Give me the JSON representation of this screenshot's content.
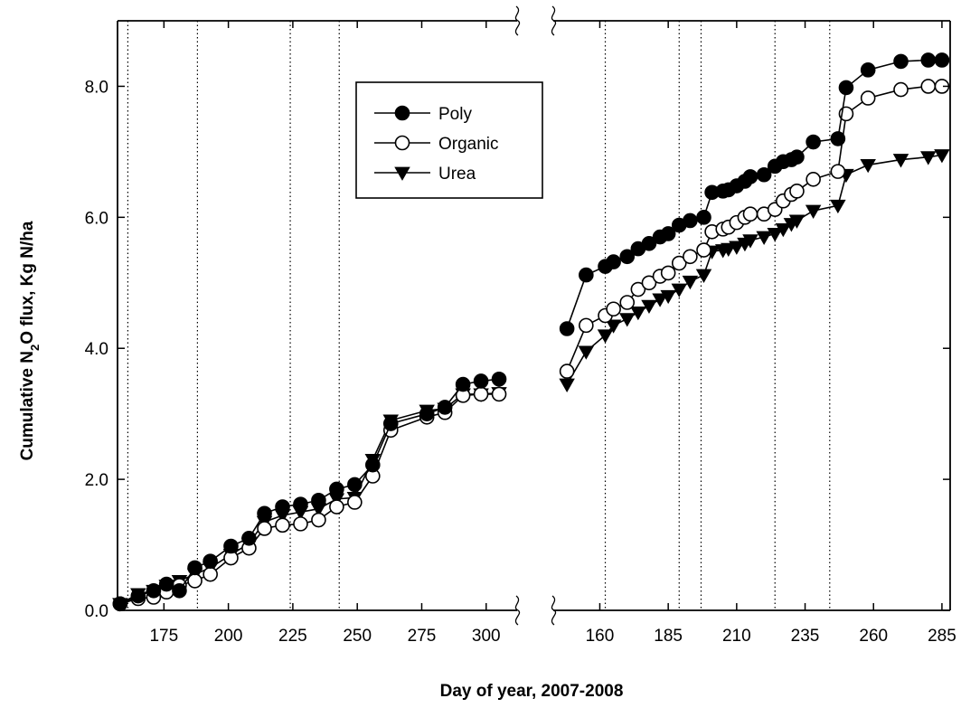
{
  "chart_data": {
    "type": "line",
    "title": "",
    "xlabel": "Day of year, 2007-2008",
    "ylabel": {
      "prefix": "Cumulative N",
      "subscript": "2",
      "suffix": "O flux, Kg N/ha"
    },
    "ylim": [
      0,
      9
    ],
    "yticks": [
      0,
      2,
      4,
      6,
      8
    ],
    "ytick_labels": [
      "0.0",
      "2.0",
      "4.0",
      "6.0",
      "8.0"
    ],
    "grid": false,
    "legend_position": "top-center",
    "segments": [
      {
        "year": "2007",
        "xlim": [
          157,
          312
        ],
        "xticks": [
          175,
          200,
          225,
          250,
          275,
          300
        ],
        "event_lines": [
          161,
          188,
          224,
          243
        ]
      },
      {
        "year": "2008",
        "xlim": [
          143,
          288
        ],
        "xticks": [
          160,
          185,
          210,
          235,
          260,
          285
        ],
        "event_lines": [
          162,
          189,
          197,
          224,
          244
        ]
      }
    ],
    "series": [
      {
        "name": "Poly",
        "marker": "filled-circle",
        "segments": [
          {
            "x": [
              158,
              165,
              171,
              176,
              181,
              187,
              193,
              201,
              208,
              214,
              221,
              228,
              235,
              242,
              249,
              256,
              263,
              277,
              284,
              291,
              298,
              305
            ],
            "y": [
              0.1,
              0.22,
              0.3,
              0.4,
              0.3,
              0.65,
              0.75,
              0.98,
              1.1,
              1.48,
              1.58,
              1.62,
              1.68,
              1.85,
              1.92,
              2.22,
              2.85,
              3.0,
              3.1,
              3.45,
              3.5,
              3.53
            ]
          },
          {
            "x": [
              148,
              155,
              162,
              165,
              170,
              174,
              178,
              182,
              185,
              189,
              193,
              198,
              201,
              205,
              207,
              210,
              213,
              215,
              220,
              224,
              227,
              230,
              232,
              238,
              247,
              250,
              258,
              270,
              280,
              285
            ],
            "y": [
              4.3,
              5.12,
              5.25,
              5.32,
              5.4,
              5.52,
              5.6,
              5.7,
              5.75,
              5.88,
              5.95,
              6.0,
              6.38,
              6.4,
              6.42,
              6.48,
              6.55,
              6.62,
              6.65,
              6.78,
              6.85,
              6.88,
              6.92,
              7.15,
              7.2,
              7.98,
              8.25,
              8.38,
              8.4,
              8.4
            ]
          }
        ]
      },
      {
        "name": "Organic",
        "marker": "open-circle",
        "segments": [
          {
            "x": [
              158,
              165,
              171,
              176,
              181,
              187,
              193,
              201,
              208,
              214,
              221,
              228,
              235,
              242,
              249,
              256,
              263,
              277,
              284,
              291,
              298,
              305
            ],
            "y": [
              0.1,
              0.18,
              0.2,
              0.28,
              0.38,
              0.45,
              0.55,
              0.8,
              0.95,
              1.25,
              1.3,
              1.32,
              1.38,
              1.58,
              1.65,
              2.05,
              2.75,
              2.95,
              3.02,
              3.28,
              3.3,
              3.3
            ]
          },
          {
            "x": [
              148,
              155,
              162,
              165,
              170,
              174,
              178,
              182,
              185,
              189,
              193,
              198,
              201,
              205,
              207,
              210,
              213,
              215,
              220,
              224,
              227,
              230,
              232,
              238,
              247,
              250,
              258,
              270,
              280,
              285
            ],
            "y": [
              3.65,
              4.35,
              4.5,
              4.6,
              4.7,
              4.9,
              5.0,
              5.1,
              5.15,
              5.3,
              5.4,
              5.5,
              5.78,
              5.82,
              5.85,
              5.92,
              6.0,
              6.05,
              6.05,
              6.12,
              6.25,
              6.35,
              6.4,
              6.58,
              6.7,
              7.58,
              7.82,
              7.95,
              8.0,
              8.0
            ]
          }
        ]
      },
      {
        "name": "Urea",
        "marker": "filled-triangle-down",
        "segments": [
          {
            "x": [
              158,
              165,
              171,
              176,
              181,
              187,
              193,
              201,
              208,
              214,
              221,
              228,
              235,
              242,
              249,
              256,
              263,
              277,
              284,
              291,
              298,
              305
            ],
            "y": [
              0.1,
              0.25,
              0.3,
              0.38,
              0.45,
              0.55,
              0.65,
              0.85,
              1.02,
              1.35,
              1.45,
              1.5,
              1.55,
              1.7,
              1.72,
              2.3,
              2.9,
              3.05,
              3.08,
              3.3,
              3.3,
              3.32
            ]
          },
          {
            "x": [
              148,
              155,
              162,
              165,
              170,
              174,
              178,
              182,
              185,
              189,
              193,
              198,
              201,
              205,
              207,
              210,
              213,
              215,
              220,
              224,
              227,
              230,
              232,
              238,
              247,
              250,
              258,
              270,
              280,
              285
            ],
            "y": [
              3.45,
              3.95,
              4.2,
              4.35,
              4.45,
              4.55,
              4.65,
              4.75,
              4.8,
              4.9,
              5.02,
              5.12,
              5.48,
              5.5,
              5.52,
              5.55,
              5.6,
              5.65,
              5.7,
              5.75,
              5.82,
              5.9,
              5.95,
              6.1,
              6.18,
              6.65,
              6.8,
              6.88,
              6.92,
              6.95
            ]
          }
        ]
      }
    ]
  }
}
